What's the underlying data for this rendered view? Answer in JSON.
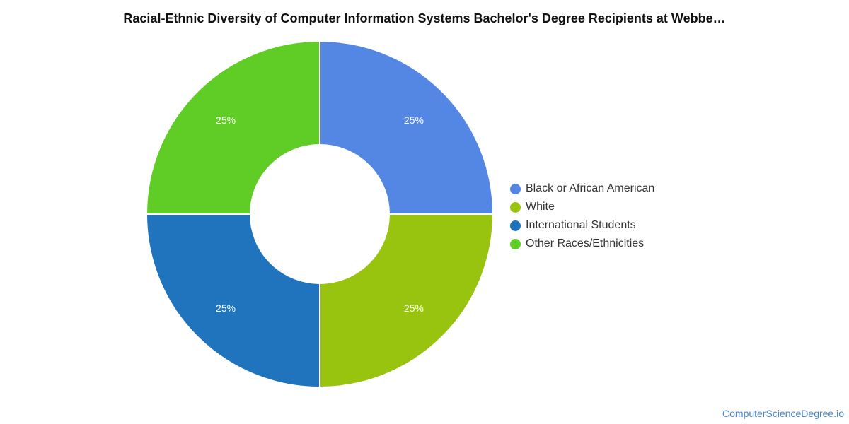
{
  "chart_data": {
    "type": "pie",
    "variant": "donut",
    "title": "Racial-Ethnic Diversity of Computer Information Systems Bachelor's Degree Recipients at Webbe…",
    "categories": [
      "Black or African American",
      "White",
      "International Students",
      "Other Races/Ethnicities"
    ],
    "values": [
      25,
      25,
      25,
      25
    ],
    "value_labels": [
      "25%",
      "25%",
      "25%",
      "25%"
    ],
    "colors": [
      "#5486e3",
      "#98c30f",
      "#1f74bd",
      "#5fcd26"
    ],
    "legend_position": "right"
  },
  "footer": {
    "source_text": "ComputerScienceDegree.io"
  }
}
